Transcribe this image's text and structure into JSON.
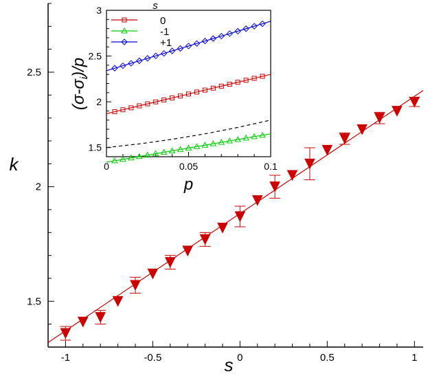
{
  "chart_data": [
    {
      "type": "scatter",
      "title": "",
      "xlabel": "s",
      "ylabel": "k",
      "xlim": [
        -1.1,
        1.05
      ],
      "ylim": [
        1.3,
        2.8
      ],
      "xticks": [
        -1,
        -0.5,
        0,
        0.5,
        1
      ],
      "xtick_labels": [
        "-1",
        "-0.5",
        "0",
        "0.5",
        "1"
      ],
      "yticks": [
        1.5,
        2,
        2.5
      ],
      "ytick_labels": [
        "1.5",
        "2",
        "2.5"
      ],
      "grid": false,
      "series": [
        {
          "marker": "filled-down-triangle",
          "color": "#cc0000",
          "x": [
            -1,
            -0.9,
            -0.8,
            -0.7,
            -0.6,
            -0.5,
            -0.4,
            -0.3,
            -0.2,
            -0.1,
            0,
            0.1,
            0.2,
            0.3,
            0.4,
            0.5,
            0.6,
            0.7,
            0.8,
            0.9,
            1
          ],
          "y": [
            1.36,
            1.41,
            1.43,
            1.5,
            1.57,
            1.62,
            1.67,
            1.72,
            1.77,
            1.82,
            1.87,
            1.94,
            2.0,
            2.05,
            2.1,
            2.16,
            2.21,
            2.25,
            2.3,
            2.33,
            2.37
          ],
          "yerr": [
            0.03,
            0,
            0.03,
            0,
            0.035,
            0,
            0.03,
            0,
            0.03,
            0,
            0.045,
            0,
            0.05,
            0,
            0.07,
            0,
            0.025,
            0,
            0.025,
            0,
            0.02
          ]
        }
      ],
      "fit_line": {
        "color": "#cc0000",
        "x": [
          -1.1,
          1.05
        ],
        "y": [
          1.32,
          2.42
        ]
      }
    },
    {
      "type": "line",
      "inset": true,
      "title": "",
      "xlabel": "p",
      "ylabel": "(σ-σi)/p",
      "ylabel_parts": [
        "(σ-σ",
        "i",
        ")/p"
      ],
      "xlim": [
        0,
        0.1
      ],
      "ylim": [
        1.4,
        3
      ],
      "xticks": [
        0,
        0.05,
        0.1
      ],
      "xtick_labels": [
        "0",
        "0.05",
        "0.1"
      ],
      "yticks": [
        1.5,
        2,
        2.5,
        3
      ],
      "ytick_labels": [
        "1.5",
        "2",
        "2.5",
        "3"
      ],
      "legend": {
        "title": "s",
        "placement": "top-left"
      },
      "series": [
        {
          "name": "0",
          "color": "#cc0000",
          "marker": "square",
          "a": 1.87,
          "b": 4.3
        },
        {
          "name": "-1",
          "color": "#00cc00",
          "marker": "triangle",
          "a": 1.34,
          "b": 3.1
        },
        {
          "name": "+1",
          "color": "#0000dd",
          "marker": "diamond",
          "a": 2.34,
          "b": 5.4
        }
      ],
      "dashed_curve": {
        "color": "#000000",
        "x": [
          0,
          0.02,
          0.04,
          0.06,
          0.08,
          0.1
        ],
        "y": [
          1.5,
          1.54,
          1.59,
          1.65,
          1.72,
          1.8
        ]
      }
    }
  ]
}
